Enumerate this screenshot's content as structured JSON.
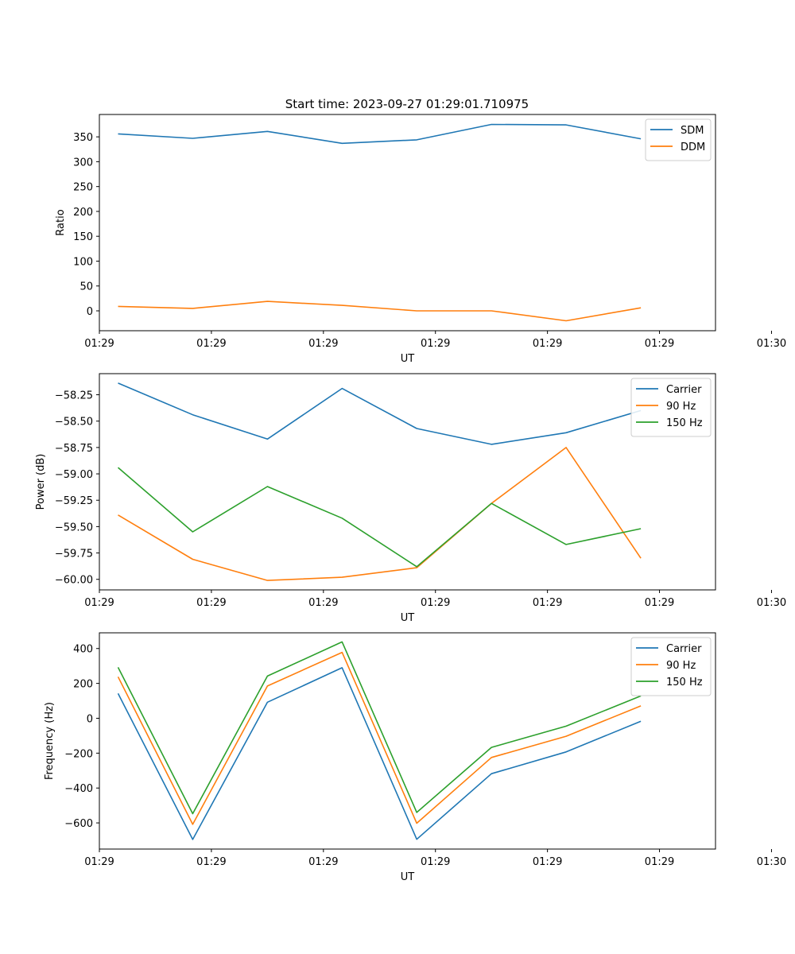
{
  "figure_title": "Start time: 2023-09-27 01:29:01.710975",
  "colors": {
    "blue": "#1f77b4",
    "orange": "#ff7f0e",
    "green": "#2ca02c"
  },
  "chart_data": [
    {
      "type": "line",
      "title": "Start time: 2023-09-27 01:29:01.710975",
      "xlabel": "UT",
      "ylabel": "Ratio",
      "x": [
        1.0,
        2.0,
        3.0,
        4.0,
        5.0,
        6.0,
        7.0,
        8.0
      ],
      "xlim": [
        0.75,
        9.0
      ],
      "xticks": [
        {
          "pos": 0.75,
          "label": "01:29"
        },
        {
          "pos": 2.25,
          "label": "01:29"
        },
        {
          "pos": 3.75,
          "label": "01:29"
        },
        {
          "pos": 5.25,
          "label": "01:29"
        },
        {
          "pos": 6.75,
          "label": "01:29"
        },
        {
          "pos": 8.25,
          "label": "01:29"
        },
        {
          "pos": 9.75,
          "label": "01:30"
        }
      ],
      "ylim": [
        -40,
        395
      ],
      "yticks": [
        {
          "pos": 0,
          "label": "0"
        },
        {
          "pos": 50,
          "label": "50"
        },
        {
          "pos": 100,
          "label": "100"
        },
        {
          "pos": 150,
          "label": "150"
        },
        {
          "pos": 200,
          "label": "200"
        },
        {
          "pos": 250,
          "label": "250"
        },
        {
          "pos": 300,
          "label": "300"
        },
        {
          "pos": 350,
          "label": "350"
        }
      ],
      "legend_position": "top-right",
      "series": [
        {
          "name": "SDM",
          "color": "#1f77b4",
          "values": [
            356,
            347,
            361,
            337,
            344,
            375,
            374,
            346
          ]
        },
        {
          "name": "DDM",
          "color": "#ff7f0e",
          "values": [
            9,
            5,
            19,
            11,
            0,
            0,
            -20,
            6
          ]
        }
      ]
    },
    {
      "type": "line",
      "title": "",
      "xlabel": "UT",
      "ylabel": "Power (dB)",
      "x": [
        1.0,
        2.0,
        3.0,
        4.0,
        5.0,
        6.0,
        7.0,
        8.0
      ],
      "xlim": [
        0.75,
        9.0
      ],
      "xticks": [
        {
          "pos": 0.75,
          "label": "01:29"
        },
        {
          "pos": 2.25,
          "label": "01:29"
        },
        {
          "pos": 3.75,
          "label": "01:29"
        },
        {
          "pos": 5.25,
          "label": "01:29"
        },
        {
          "pos": 6.75,
          "label": "01:29"
        },
        {
          "pos": 8.25,
          "label": "01:29"
        },
        {
          "pos": 9.75,
          "label": "01:30"
        }
      ],
      "ylim": [
        -60.1,
        -58.05
      ],
      "yticks": [
        {
          "pos": -60.0,
          "label": "−60.00"
        },
        {
          "pos": -59.75,
          "label": "−59.75"
        },
        {
          "pos": -59.5,
          "label": "−59.50"
        },
        {
          "pos": -59.25,
          "label": "−59.25"
        },
        {
          "pos": -59.0,
          "label": "−59.00"
        },
        {
          "pos": -58.75,
          "label": "−58.75"
        },
        {
          "pos": -58.5,
          "label": "−58.50"
        },
        {
          "pos": -58.25,
          "label": "−58.25"
        }
      ],
      "legend_position": "top-right",
      "series": [
        {
          "name": "Carrier",
          "color": "#1f77b4",
          "values": [
            -58.14,
            -58.44,
            -58.67,
            -58.19,
            -58.57,
            -58.72,
            -58.61,
            -58.4
          ]
        },
        {
          "name": "90 Hz",
          "color": "#ff7f0e",
          "values": [
            -59.39,
            -59.81,
            -60.01,
            -59.98,
            -59.89,
            -59.28,
            -58.75,
            -59.8
          ]
        },
        {
          "name": "150 Hz",
          "color": "#2ca02c",
          "values": [
            -58.94,
            -59.55,
            -59.12,
            -59.42,
            -59.88,
            -59.28,
            -59.67,
            -59.52
          ]
        }
      ]
    },
    {
      "type": "line",
      "title": "",
      "xlabel": "UT",
      "ylabel": "Frequency (Hz)",
      "x": [
        1.0,
        2.0,
        3.0,
        4.0,
        5.0,
        6.0,
        7.0,
        8.0
      ],
      "xlim": [
        0.75,
        9.0
      ],
      "xticks": [
        {
          "pos": 0.75,
          "label": "01:29"
        },
        {
          "pos": 2.25,
          "label": "01:29"
        },
        {
          "pos": 3.75,
          "label": "01:29"
        },
        {
          "pos": 5.25,
          "label": "01:29"
        },
        {
          "pos": 6.75,
          "label": "01:29"
        },
        {
          "pos": 8.25,
          "label": "01:29"
        },
        {
          "pos": 9.75,
          "label": "01:30"
        }
      ],
      "ylim": [
        -750,
        490
      ],
      "yticks": [
        {
          "pos": -600,
          "label": "−600"
        },
        {
          "pos": -400,
          "label": "−400"
        },
        {
          "pos": -200,
          "label": "−200"
        },
        {
          "pos": 0,
          "label": "0"
        },
        {
          "pos": 200,
          "label": "200"
        },
        {
          "pos": 400,
          "label": "400"
        }
      ],
      "legend_position": "top-right",
      "series": [
        {
          "name": "Carrier",
          "color": "#1f77b4",
          "values": [
            142,
            -695,
            92,
            290,
            -694,
            -318,
            -193,
            -17
          ]
        },
        {
          "name": "90 Hz",
          "color": "#ff7f0e",
          "values": [
            238,
            -608,
            185,
            378,
            -602,
            -225,
            -103,
            71
          ]
        },
        {
          "name": "150 Hz",
          "color": "#2ca02c",
          "values": [
            292,
            -547,
            242,
            438,
            -540,
            -167,
            -45,
            128
          ]
        }
      ]
    }
  ]
}
